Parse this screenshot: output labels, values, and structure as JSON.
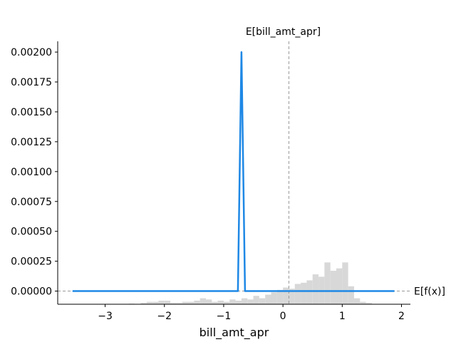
{
  "chart_data": {
    "type": "line",
    "xlabel": "bill_amt_apr",
    "ylabel": "",
    "xlim": [
      -3.8,
      2.15
    ],
    "ylim": [
      -0.00011,
      0.00209
    ],
    "x_ticks": [
      -3,
      -2,
      -1,
      0,
      1,
      2
    ],
    "x_tick_labels": [
      "−3",
      "−2",
      "−1",
      "0",
      "1",
      "2"
    ],
    "y_ticks": [
      0.0,
      0.00025,
      0.0005,
      0.00075,
      0.001,
      0.00125,
      0.0015,
      0.00175,
      0.002
    ],
    "y_tick_labels": [
      "0.00000",
      "0.00025",
      "0.00050",
      "0.00075",
      "0.00100",
      "0.00125",
      "0.00150",
      "0.00175",
      "0.00200"
    ],
    "grid": false,
    "series": [
      {
        "color": "#1E88E5",
        "x": [
          -3.55,
          -0.76,
          -0.7,
          -0.64,
          1.88
        ],
        "y": [
          0.0,
          0.0,
          0.002,
          0.0,
          0.0
        ]
      }
    ],
    "expected_x": {
      "label": "E[bill_amt_apr]",
      "value": 0.1
    },
    "expected_y": {
      "label": "E[f(x)]",
      "value": 0.0
    },
    "histogram": {
      "color": "#d8d8d8",
      "bin_width": 0.1,
      "bin_starts": [
        -2.6,
        -2.4,
        -2.3,
        -2.2,
        -2.1,
        -2.0,
        -1.9,
        -1.8,
        -1.7,
        -1.6,
        -1.5,
        -1.4,
        -1.3,
        -1.2,
        -1.1,
        -1.0,
        -0.9,
        -0.8,
        -0.7,
        -0.6,
        -0.5,
        -0.4,
        -0.3,
        -0.2,
        -0.1,
        0.0,
        0.1,
        0.2,
        0.3,
        0.4,
        0.5,
        0.6,
        0.7,
        0.8,
        0.9,
        1.0,
        1.1,
        1.2,
        1.3,
        1.4
      ],
      "heights": [
        5e-06,
        1e-05,
        2e-05,
        2e-05,
        3e-05,
        3e-05,
        1e-05,
        1e-05,
        2e-05,
        2e-05,
        3e-05,
        5e-05,
        4e-05,
        2e-05,
        3e-05,
        2e-05,
        4e-05,
        3e-05,
        5e-05,
        4e-05,
        7e-05,
        5e-05,
        8e-05,
        0.0001,
        0.00012,
        0.00014,
        0.00013,
        0.00017,
        0.00018,
        0.0002,
        0.00025,
        0.00023,
        0.00035,
        0.00028,
        0.0003,
        0.00035,
        0.00015,
        5e-05,
        2e-05,
        1e-05
      ]
    }
  }
}
